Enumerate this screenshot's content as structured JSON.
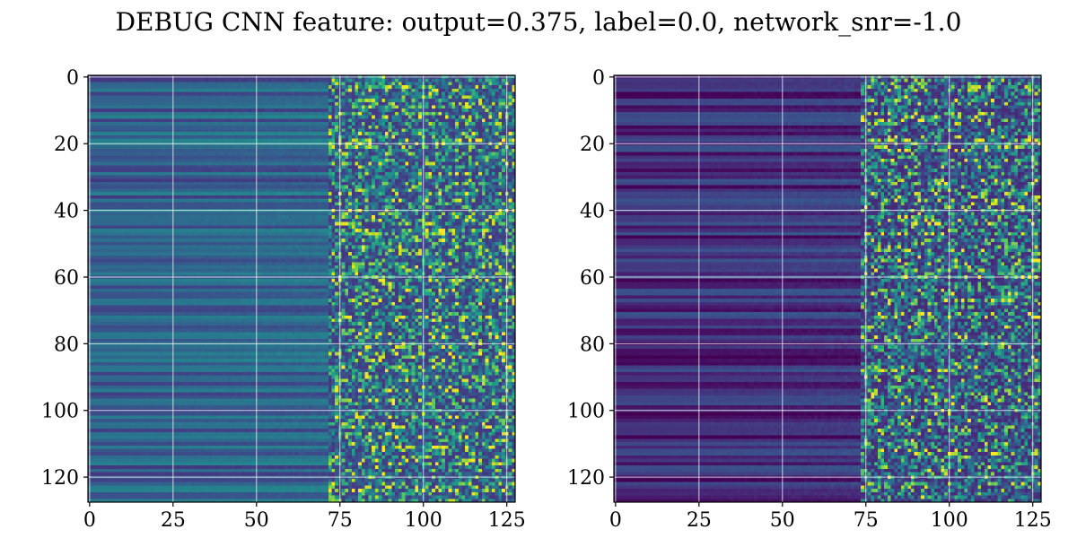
{
  "chart_data": {
    "type": "heatmap",
    "title": "DEBUG CNN feature: output=0.375, label=0.0, network_snr=-1.0",
    "colormap": "viridis",
    "grid": true,
    "panels": [
      {
        "name": "",
        "rows": 128,
        "cols": 128,
        "xlim": [
          -0.5,
          127.5
        ],
        "ylim": [
          127.5,
          -0.5
        ],
        "xticks": [
          0,
          25,
          50,
          75,
          100,
          125
        ],
        "yticks": [
          0,
          20,
          40,
          60,
          80,
          100,
          120
        ],
        "noise_onset_col": 72,
        "base_level": 0.3,
        "noise_level": 0.42
      },
      {
        "name": "",
        "rows": 128,
        "cols": 128,
        "xlim": [
          -0.5,
          127.5
        ],
        "ylim": [
          127.5,
          -0.5
        ],
        "xticks": [
          0,
          25,
          50,
          75,
          100,
          125
        ],
        "yticks": [
          0,
          20,
          40,
          60,
          80,
          100,
          120
        ],
        "noise_onset_col": 74,
        "base_level": 0.12,
        "noise_level": 0.3
      }
    ]
  }
}
